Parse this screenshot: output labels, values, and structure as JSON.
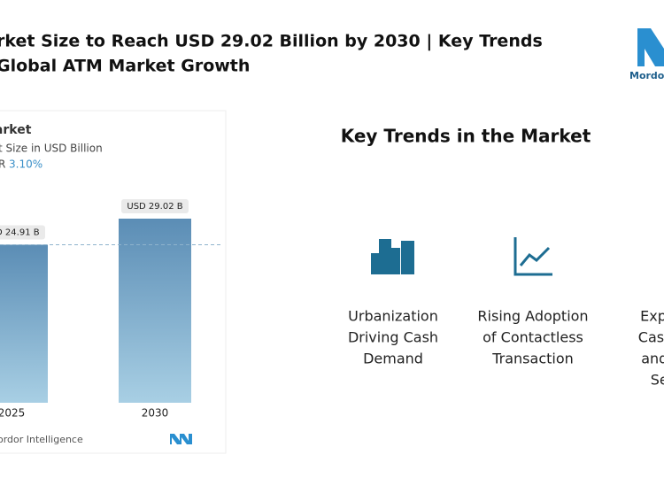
{
  "header": {
    "lines": [
      "rket Size to Reach USD 29.02 Billion by 2030 | Key Trends",
      "Global ATM Market Growth"
    ],
    "logo": "Mordor"
  },
  "chart_data": {
    "type": "bar",
    "title": "Market",
    "subtitle": "t Size in USD Billion",
    "cagr_label": "R",
    "cagr": "3.10%",
    "categories": [
      "2025",
      "2030"
    ],
    "values": [
      24.91,
      29.02
    ],
    "value_labels": [
      "USD 24.91 B",
      "USD 29.02 B"
    ],
    "color": "#5b8db5",
    "source": "e : Mordor Intelligence"
  },
  "trends": {
    "title": "Key Trends in the Market",
    "items": [
      {
        "lines": [
          "Urbanization",
          "Driving Cash",
          "Demand"
        ]
      },
      {
        "lines": [
          "Rising Adoption",
          "of Contactless",
          "Transaction"
        ]
      },
      {
        "lines": [
          "Expan",
          "Cash-F",
          "and D",
          "Ser"
        ]
      }
    ]
  }
}
